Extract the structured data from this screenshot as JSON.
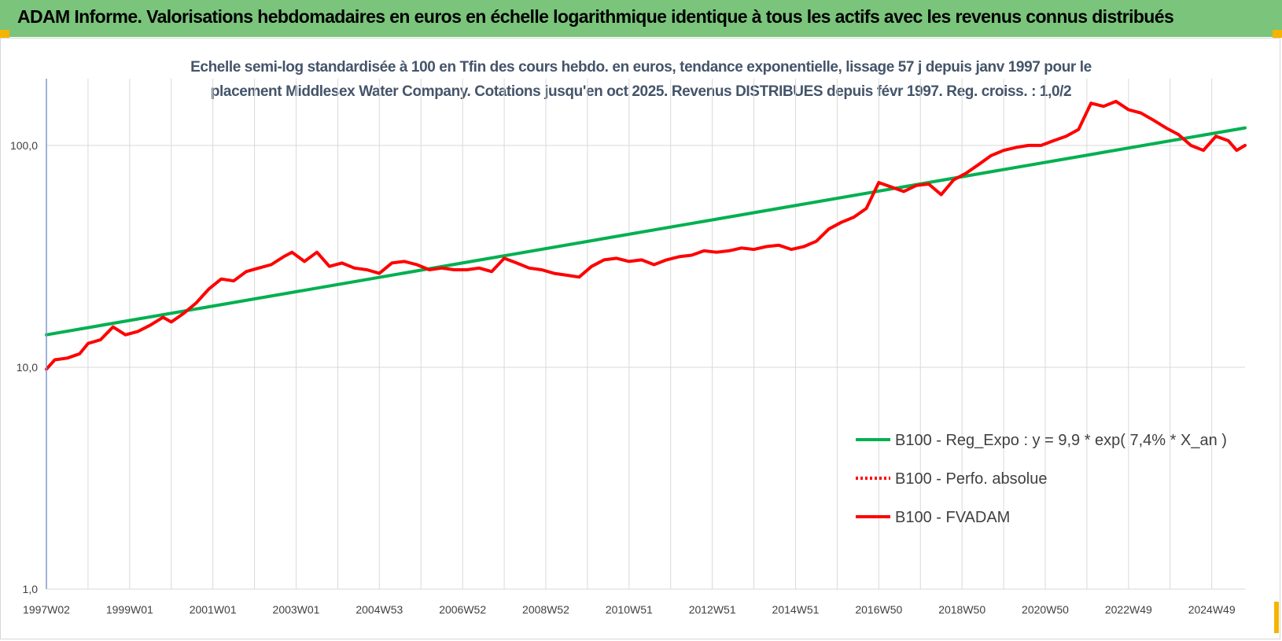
{
  "header": {
    "title": "ADAM Informe. Valorisations hebdomadaires en euros en échelle logarithmique identique à tous les actifs avec les revenus connus distribués"
  },
  "chart_data": {
    "type": "line",
    "title_line1": "Echelle semi-log standardisée à 100 en Tfin des cours hebdo. en euros, tendance exponentielle, lissage 57 j depuis janv 1997 pour le",
    "title_line2": "placement Middlesex Water Company. Cotations jusqu'en oct 2025.  Revenus DISTRIBUES depuis févr 1997. Reg. croiss. : 1,0/2",
    "y_scale": "log",
    "ylim": [
      1,
      200
    ],
    "xlim": [
      1997.0,
      2025.8
    ],
    "grid": true,
    "legend_position": "right",
    "y_ticks": [
      {
        "value": 1,
        "label": "1,0"
      },
      {
        "value": 10,
        "label": "10,0"
      },
      {
        "value": 100,
        "label": "100,0"
      }
    ],
    "x_ticks": [
      {
        "year": 1997.0,
        "label": "1997W02"
      },
      {
        "year": 1999.0,
        "label": "1999W01"
      },
      {
        "year": 2001.0,
        "label": "2001W01"
      },
      {
        "year": 2003.0,
        "label": "2003W01"
      },
      {
        "year": 2005.0,
        "label": "2004W53"
      },
      {
        "year": 2007.0,
        "label": "2006W52"
      },
      {
        "year": 2009.0,
        "label": "2008W52"
      },
      {
        "year": 2011.0,
        "label": "2010W51"
      },
      {
        "year": 2013.0,
        "label": "2012W51"
      },
      {
        "year": 2015.0,
        "label": "2014W51"
      },
      {
        "year": 2017.0,
        "label": "2016W50"
      },
      {
        "year": 2019.0,
        "label": "2018W50"
      },
      {
        "year": 2021.0,
        "label": "2020W50"
      },
      {
        "year": 2023.0,
        "label": "2022W49"
      },
      {
        "year": 2025.0,
        "label": "2024W49"
      }
    ],
    "series": [
      {
        "name": "B100 - Reg_Expo : y = 9,9 * exp( 7,4% *  X_an )",
        "color": "#00b050",
        "style": "solid",
        "x": [
          1997.0,
          2025.8
        ],
        "y": [
          14.0,
          120.0
        ]
      },
      {
        "name": "B100 - Perfo. absolue",
        "color": "#ff0000",
        "style": "dotted",
        "x": [],
        "y": []
      },
      {
        "name": "B100 - FVADAM",
        "color": "#ff0000",
        "style": "solid",
        "x": [
          1997.0,
          1997.2,
          1997.5,
          1997.8,
          1998.0,
          1998.3,
          1998.6,
          1998.9,
          1999.2,
          1999.5,
          1999.8,
          2000.0,
          2000.3,
          2000.6,
          2000.9,
          2001.2,
          2001.5,
          2001.8,
          2002.1,
          2002.4,
          2002.7,
          2002.9,
          2003.2,
          2003.5,
          2003.8,
          2004.1,
          2004.4,
          2004.7,
          2005.0,
          2005.3,
          2005.6,
          2005.9,
          2006.2,
          2006.5,
          2006.8,
          2007.1,
          2007.4,
          2007.7,
          2008.0,
          2008.3,
          2008.6,
          2008.9,
          2009.2,
          2009.5,
          2009.8,
          2010.1,
          2010.4,
          2010.7,
          2011.0,
          2011.3,
          2011.6,
          2011.9,
          2012.2,
          2012.5,
          2012.8,
          2013.1,
          2013.4,
          2013.7,
          2014.0,
          2014.3,
          2014.6,
          2014.9,
          2015.2,
          2015.5,
          2015.8,
          2016.1,
          2016.4,
          2016.7,
          2017.0,
          2017.3,
          2017.6,
          2017.9,
          2018.2,
          2018.5,
          2018.8,
          2019.1,
          2019.4,
          2019.7,
          2020.0,
          2020.3,
          2020.6,
          2020.9,
          2021.2,
          2021.5,
          2021.8,
          2022.1,
          2022.4,
          2022.7,
          2023.0,
          2023.3,
          2023.6,
          2023.9,
          2024.2,
          2024.5,
          2024.8,
          2025.1,
          2025.4,
          2025.6,
          2025.8
        ],
        "y": [
          9.8,
          10.8,
          11.0,
          11.5,
          12.8,
          13.3,
          15.2,
          14.0,
          14.5,
          15.5,
          16.8,
          16.0,
          17.5,
          19.5,
          22.5,
          25.0,
          24.5,
          27.0,
          28.0,
          29.0,
          31.5,
          33.0,
          30.0,
          33.0,
          28.5,
          29.5,
          28.0,
          27.5,
          26.5,
          29.5,
          30.0,
          29.0,
          27.5,
          28.0,
          27.5,
          27.5,
          28.0,
          27.0,
          31.0,
          29.5,
          28.0,
          27.5,
          26.5,
          26.0,
          25.5,
          28.5,
          30.5,
          31.0,
          30.0,
          30.5,
          29.0,
          30.5,
          31.5,
          32.0,
          33.5,
          33.0,
          33.5,
          34.5,
          34.0,
          35.0,
          35.5,
          34.0,
          35.0,
          37.0,
          42.0,
          45.0,
          47.5,
          52.0,
          68.0,
          65.0,
          62.0,
          66.0,
          67.0,
          60.0,
          70.0,
          75.0,
          82.0,
          90.0,
          95.0,
          98.0,
          100.0,
          100.0,
          105.0,
          110.0,
          118.0,
          155.0,
          150.0,
          158.0,
          145.0,
          140.0,
          130.0,
          120.0,
          112.0,
          100.0,
          95.0,
          110.0,
          105.0,
          95.0,
          100.0
        ]
      }
    ]
  }
}
